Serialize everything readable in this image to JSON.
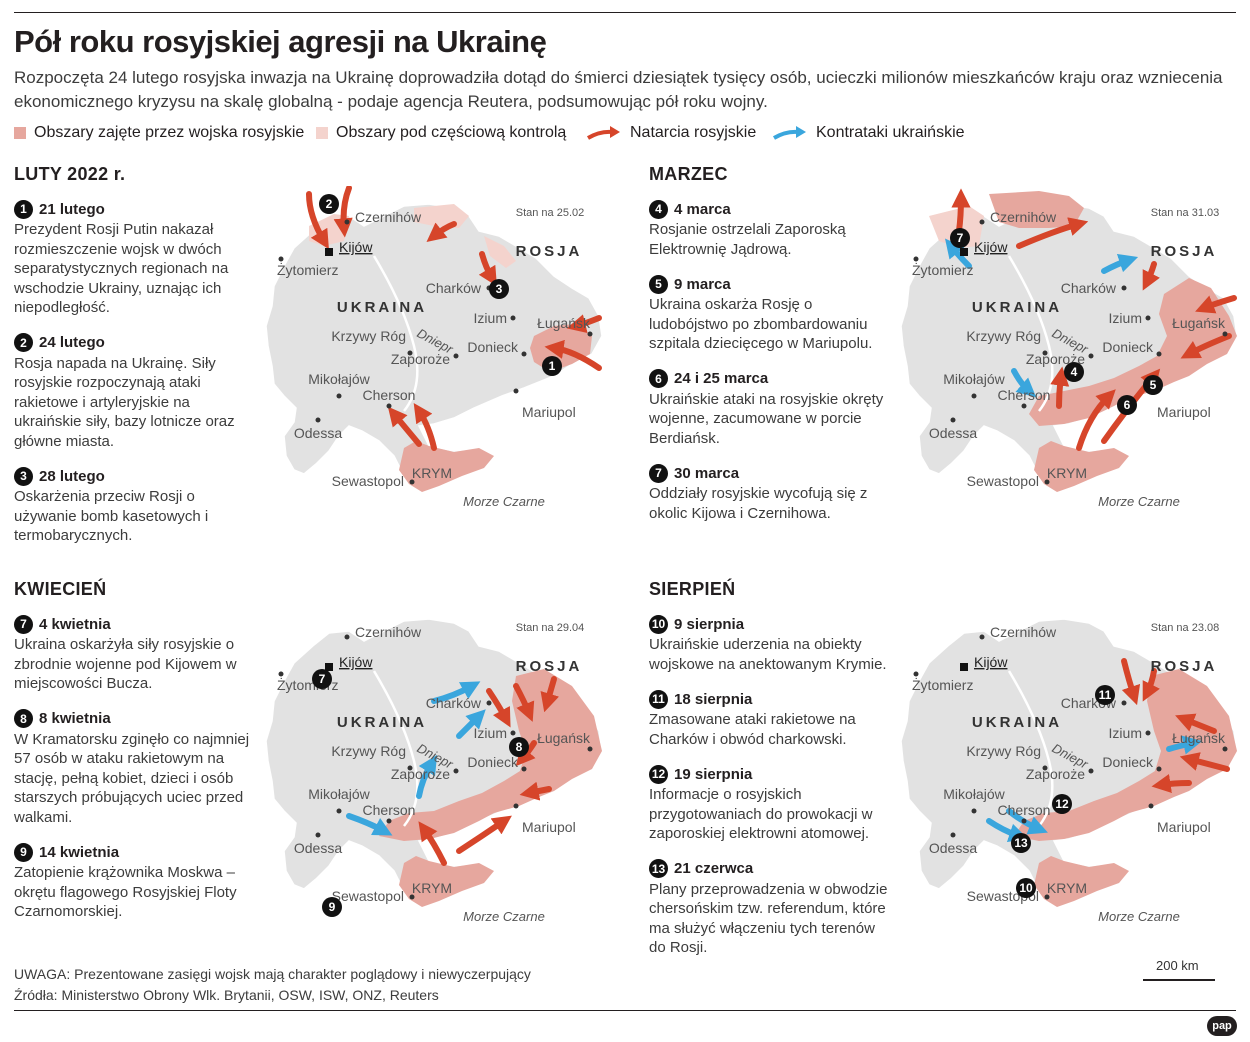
{
  "header": {
    "title": "Pół roku rosyjskiej agresji na Ukrainę",
    "lead": "Rozpoczęta 24 lutego rosyjska inwazja na Ukrainę doprowadziła dotąd do śmierci dziesiątek tysięcy osób, ucieczki milionów mieszkańców kraju oraz wzniecenia ekonomicznego kryzysu na skalę globalną - podaje agencja Reutera, podsumowując pół roku wojny."
  },
  "legend": {
    "occupied": "Obszary zajęte przez wojska rosyjskie",
    "partial": "Obszary pod częściową kontrolą",
    "russian": "Natarcia rosyjskie",
    "ukrainian": "Kontrataki ukraińskie"
  },
  "colors": {
    "occupied": "#e6a79e",
    "partial": "#f4d3cd",
    "land": "#e2e2e2",
    "russian_arrow": "#d6452a",
    "ukrainian_arrow": "#3aa6dd"
  },
  "labels": {
    "rosja": "ROSJA",
    "ukraina": "UKRAINA",
    "dniepr": "Dniepr",
    "morze": "Morze Czarne",
    "cities": {
      "czernihow": "Czernihów",
      "kijow": "Kijów",
      "zytomierz": "Żytomierz",
      "charkow": "Charków",
      "izium": "Izium",
      "lugansk": "Ługańsk",
      "donieck": "Donieck",
      "zaporoze": "Zaporoże",
      "krzywy_rog": "Krzywy Róg",
      "mikolajow": "Mikołajów",
      "odessa": "Odessa",
      "cherson": "Cherson",
      "mariupol": "Mariupol",
      "krym": "KRYM",
      "sewastopol": "Sewastopol"
    }
  },
  "panels": [
    {
      "title": "LUTY 2022 r.",
      "stan": "Stan na 25.02",
      "events": [
        {
          "num": "1",
          "date": "21 lutego",
          "text": "Prezydent Rosji Putin nakazał rozmieszczenie wojsk w dwóch separatystycznych regionach na wschodzie Ukrainy, uznając ich niepodległość."
        },
        {
          "num": "2",
          "date": "24 lutego",
          "text": "Rosja napada na Ukrainę. Siły rosyjskie rozpoczynają ataki rakietowe i artyleryjskie na ukraińskie siły, bazy lotnicze oraz główne miasta."
        },
        {
          "num": "3",
          "date": "28 lutego",
          "text": "Oskarżenia przeciw Rosji o używanie bomb kasetowych i termobarycznych."
        }
      ],
      "map_badges": [
        "1",
        "2",
        "3"
      ]
    },
    {
      "title": "MARZEC",
      "stan": "Stan na 31.03",
      "events": [
        {
          "num": "4",
          "date": "4 marca",
          "text": "Rosjanie ostrzelali Zaporoską Elektrownię Jądrową."
        },
        {
          "num": "5",
          "date": "9 marca",
          "text": "Ukraina oskarża Rosję o ludobójstwo po zbombardowaniu szpitala dziecięcego w Mariupolu."
        },
        {
          "num": "6",
          "date": "24 i 25 marca",
          "text": "Ukraińskie ataki na rosyjskie okręty wojenne, zacumowane w porcie Berdiańsk."
        },
        {
          "num": "7",
          "date": "30 marca",
          "text": "Oddziały rosyjskie wycofują się z okolic Kijowa i Czernihowa."
        }
      ],
      "map_badges": [
        "7",
        "4",
        "5",
        "6"
      ]
    },
    {
      "title": "KWIECIEŃ",
      "stan": "Stan na 29.04",
      "events": [
        {
          "num": "7",
          "date": "4 kwietnia",
          "text": "Ukraina oskarżyła siły rosyjskie o zbrodnie wojenne pod Kijowem w miejscowości Bucza."
        },
        {
          "num": "8",
          "date": "8 kwietnia",
          "text": "W Kramatorsku zginęło co najmniej 57 osób w ataku rakietowym na stację, pełną kobiet, dzieci i osób starszych próbujących uciec przed walkami."
        },
        {
          "num": "9",
          "date": "14 kwietnia",
          "text": "Zatopienie krążownika Moskwa – okrętu flagowego Rosyjskiej Floty Czarnomorskiej."
        }
      ],
      "map_badges": [
        "7",
        "8",
        "9"
      ]
    },
    {
      "title": "SIERPIEŃ",
      "stan": "Stan na 23.08",
      "events": [
        {
          "num": "10",
          "date": "9 sierpnia",
          "text": "Ukraińskie uderzenia na obiekty wojskowe na anektowanym Krymie."
        },
        {
          "num": "11",
          "date": "18 sierpnia",
          "text": "Zmasowane ataki rakietowe na Charków i obwód charkowski."
        },
        {
          "num": "12",
          "date": "19 sierpnia",
          "text": "Informacje o rosyjskich przygotowaniach do prowokacji w zaporoskiej elektrowni atomowej."
        },
        {
          "num": "13",
          "date": "21 czerwca",
          "text": "Plany przeprowadzenia w obwodzie chersońskim tzw. referendum, które ma służyć włączeniu tych terenów do Rosji."
        }
      ],
      "map_badges": [
        "11",
        "12",
        "13",
        "10"
      ]
    }
  ],
  "footer": {
    "note": "UWAGA: Prezentowane zasięgi wojsk mają charakter poglądowy i niewyczerpujący",
    "sources": "Źródła: Ministerstwo Obrony Wlk. Brytanii, OSW, ISW, ONZ, Reuters",
    "scale": "200 km",
    "logo": "pap"
  }
}
